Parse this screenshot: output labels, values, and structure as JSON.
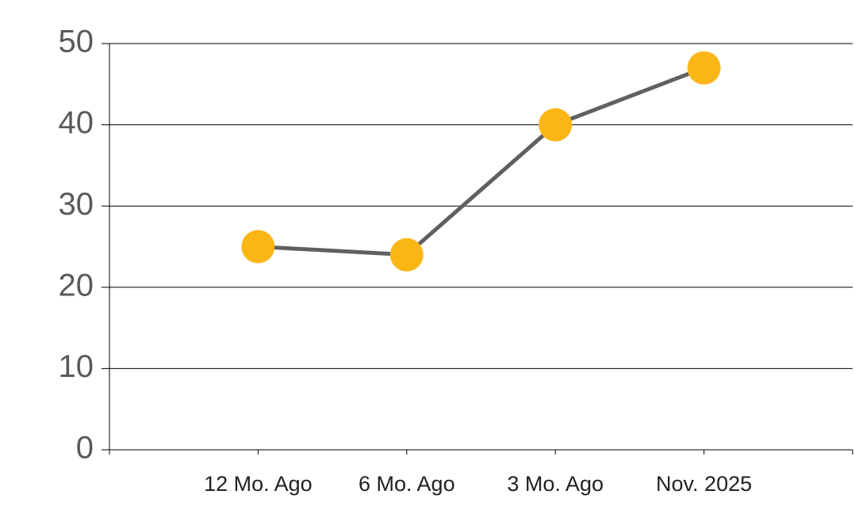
{
  "chart_data": {
    "type": "line",
    "categories": [
      "12 Mo. Ago",
      "6 Mo. Ago",
      "3 Mo. Ago",
      "Nov. 2025"
    ],
    "series": [
      {
        "values": [
          25,
          24,
          40,
          47
        ],
        "color": "#fbb616",
        "line_color": "#606060"
      }
    ],
    "ylim": [
      0,
      50
    ],
    "yticks": [
      0,
      10,
      20,
      30,
      40,
      50
    ],
    "grid": true
  }
}
